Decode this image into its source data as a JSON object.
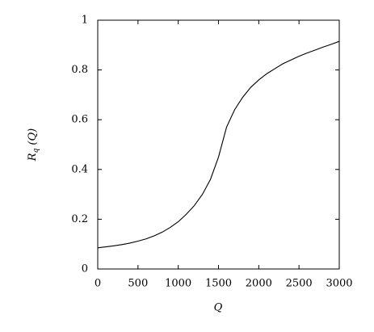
{
  "chart_data": {
    "type": "line",
    "x_label": "Q",
    "y_label": {
      "symbol": "R",
      "subscript": "q",
      "argument": "(Q)"
    },
    "x": [
      0,
      100,
      200,
      300,
      400,
      500,
      600,
      700,
      800,
      900,
      1000,
      1100,
      1200,
      1300,
      1400,
      1500,
      1600,
      1700,
      1800,
      1900,
      2000,
      2100,
      2200,
      2300,
      2400,
      2500,
      2600,
      2700,
      2800,
      2900,
      3000
    ],
    "series": [
      {
        "color": "#000000",
        "values": [
          0.085,
          0.089,
          0.093,
          0.098,
          0.104,
          0.112,
          0.121,
          0.133,
          0.148,
          0.167,
          0.19,
          0.22,
          0.255,
          0.3,
          0.36,
          0.45,
          0.57,
          0.64,
          0.69,
          0.73,
          0.76,
          0.785,
          0.805,
          0.825,
          0.84,
          0.855,
          0.868,
          0.88,
          0.892,
          0.903,
          0.915
        ]
      }
    ],
    "xlim": [
      0,
      3000
    ],
    "xticks": [
      0,
      500,
      1000,
      1500,
      2000,
      2500,
      3000
    ],
    "ylim": [
      0,
      1
    ],
    "yticks": [
      0,
      0.2,
      0.4,
      0.6,
      0.8,
      1
    ]
  }
}
